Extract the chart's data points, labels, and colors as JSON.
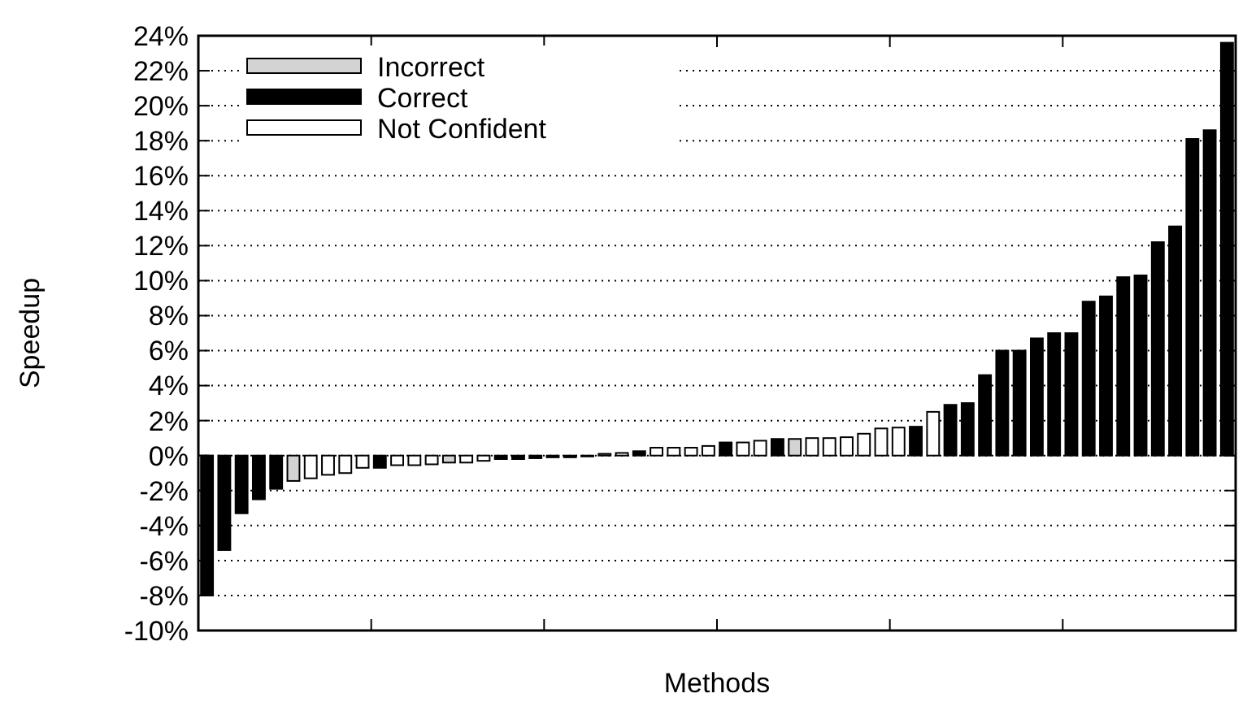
{
  "chart_data": {
    "type": "bar",
    "xlabel": "Methods",
    "ylabel": "Speedup",
    "categories": [
      null,
      null,
      null,
      null,
      null,
      null,
      null,
      null,
      null,
      null,
      null,
      null,
      null,
      null,
      null,
      null,
      null,
      null,
      null,
      null,
      null,
      null,
      null,
      null,
      null,
      null,
      null,
      null,
      null,
      null,
      null,
      null,
      null,
      null,
      null,
      null,
      null,
      null,
      null,
      null,
      null,
      null,
      null,
      null,
      null,
      null,
      null,
      null,
      null,
      null,
      null,
      null,
      null,
      null,
      null,
      null,
      null,
      null,
      null,
      null
    ],
    "series": [
      {
        "name": "Incorrect",
        "color": "#d3d3d3",
        "values": [
          null,
          null,
          null,
          null,
          null,
          -1.45,
          null,
          null,
          null,
          null,
          null,
          null,
          null,
          null,
          -0.4,
          null,
          null,
          null,
          null,
          null,
          null,
          null,
          null,
          null,
          null,
          null,
          null,
          null,
          null,
          null,
          null,
          null,
          null,
          null,
          0.95,
          null,
          null,
          null,
          null,
          null,
          null,
          null,
          null,
          null,
          null,
          null,
          null,
          null,
          null,
          null,
          null,
          null,
          null,
          null,
          null,
          null,
          null,
          null,
          null,
          null
        ]
      },
      {
        "name": "Correct",
        "color": "#000000",
        "values": [
          -8.0,
          -5.4,
          -3.3,
          -2.5,
          -1.9,
          null,
          null,
          null,
          null,
          null,
          -0.7,
          null,
          null,
          null,
          null,
          null,
          null,
          -0.2,
          -0.2,
          -0.15,
          -0.1,
          -0.1,
          -0.05,
          null,
          null,
          0.25,
          null,
          null,
          null,
          null,
          0.75,
          null,
          null,
          0.95,
          null,
          null,
          null,
          null,
          null,
          null,
          null,
          1.65,
          null,
          2.9,
          3.0,
          4.6,
          6.0,
          6.0,
          6.7,
          7.0,
          7.0,
          8.8,
          9.1,
          10.2,
          10.3,
          12.2,
          13.1,
          18.1,
          18.6,
          23.6
        ]
      },
      {
        "name": "Not Confident",
        "color": "#ffffff",
        "values": [
          null,
          null,
          null,
          null,
          null,
          null,
          -1.3,
          -1.1,
          -1.0,
          -0.7,
          null,
          -0.55,
          -0.55,
          -0.5,
          null,
          -0.4,
          -0.3,
          null,
          null,
          null,
          null,
          null,
          null,
          0.1,
          0.15,
          null,
          0.45,
          0.45,
          0.45,
          0.55,
          null,
          0.75,
          0.85,
          null,
          null,
          1.0,
          1.0,
          1.05,
          1.25,
          1.55,
          1.6,
          null,
          2.5,
          null,
          null,
          null,
          null,
          null,
          null,
          null,
          null,
          null,
          null,
          null,
          null,
          null,
          null,
          null,
          null,
          null
        ]
      }
    ],
    "ylim": [
      -10,
      24
    ],
    "yticks": [
      {
        "value": -10,
        "label": "-10%"
      },
      {
        "value": -8,
        "label": "-8%"
      },
      {
        "value": -6,
        "label": "-6%"
      },
      {
        "value": -4,
        "label": "-4%"
      },
      {
        "value": -2,
        "label": "-2%"
      },
      {
        "value": 0,
        "label": "0%"
      },
      {
        "value": 2,
        "label": "2%"
      },
      {
        "value": 4,
        "label": "4%"
      },
      {
        "value": 6,
        "label": "6%"
      },
      {
        "value": 8,
        "label": "8%"
      },
      {
        "value": 10,
        "label": "10%"
      },
      {
        "value": 12,
        "label": "12%"
      },
      {
        "value": 14,
        "label": "14%"
      },
      {
        "value": 16,
        "label": "16%"
      },
      {
        "value": 18,
        "label": "18%"
      },
      {
        "value": 20,
        "label": "20%"
      },
      {
        "value": 22,
        "label": "22%"
      },
      {
        "value": 24,
        "label": "24%"
      }
    ],
    "grid": "y",
    "legend": "top left"
  }
}
